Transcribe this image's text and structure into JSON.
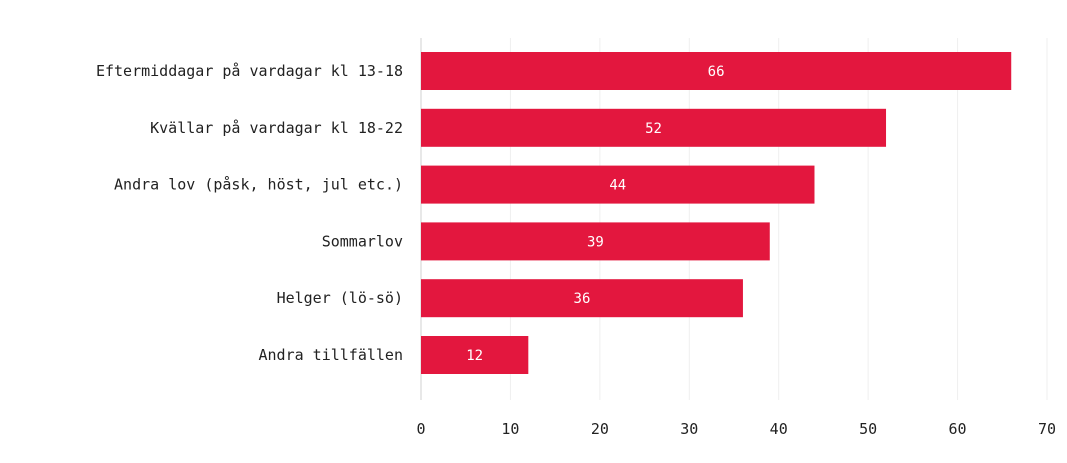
{
  "chart_data": {
    "type": "bar",
    "orientation": "horizontal",
    "categories": [
      "Eftermiddagar på vardagar kl 13-18",
      "Kvällar på vardagar kl 18-22",
      "Andra lov (påsk, höst, jul etc.)",
      "Sommarlov",
      "Helger (lö-sö)",
      "Andra tillfällen"
    ],
    "values": [
      66,
      52,
      44,
      39,
      36,
      12
    ],
    "title": "",
    "xlabel": "",
    "ylabel": "",
    "xlim": [
      0,
      70
    ],
    "xticks": [
      "0",
      "10",
      "20",
      "30",
      "40",
      "50",
      "60",
      "70"
    ],
    "grid": true,
    "bar_color": "#e3173e"
  }
}
